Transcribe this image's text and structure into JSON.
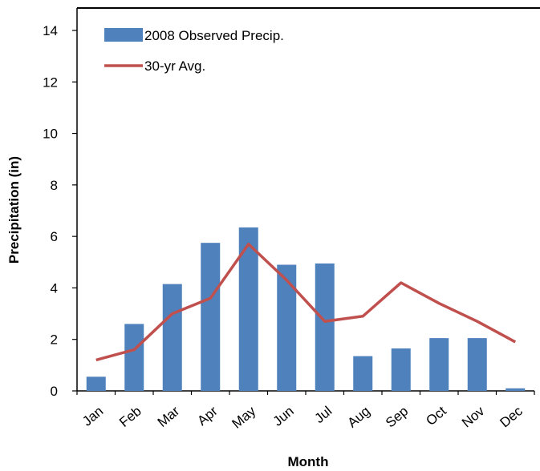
{
  "colors": {
    "bar": "#4F81BD",
    "line": "#C0504D",
    "axis": "#000000",
    "background": "#FFFFFF"
  },
  "chart_data": {
    "type": "bar",
    "categories": [
      "Jan",
      "Feb",
      "Mar",
      "Apr",
      "May",
      "Jun",
      "Jul",
      "Aug",
      "Sep",
      "Oct",
      "Nov",
      "Dec"
    ],
    "series": [
      {
        "name": "2008 Observed Precip.",
        "type": "bar",
        "values": [
          0.55,
          2.6,
          4.15,
          5.75,
          6.35,
          4.9,
          4.95,
          1.35,
          1.65,
          2.05,
          2.05,
          0.1
        ]
      },
      {
        "name": "30-yr Avg.",
        "type": "line",
        "values": [
          1.2,
          1.6,
          3.0,
          3.6,
          5.7,
          4.3,
          2.7,
          2.9,
          4.2,
          3.4,
          2.7,
          1.9
        ]
      }
    ],
    "title": "",
    "xlabel": "Month",
    "ylabel": "Precipitation (in)",
    "ylim": [
      0,
      14
    ],
    "yticks": [
      "0",
      "2",
      "4",
      "6",
      "8",
      "10",
      "12",
      "14"
    ],
    "grid": false,
    "legend_position": "top-left"
  }
}
